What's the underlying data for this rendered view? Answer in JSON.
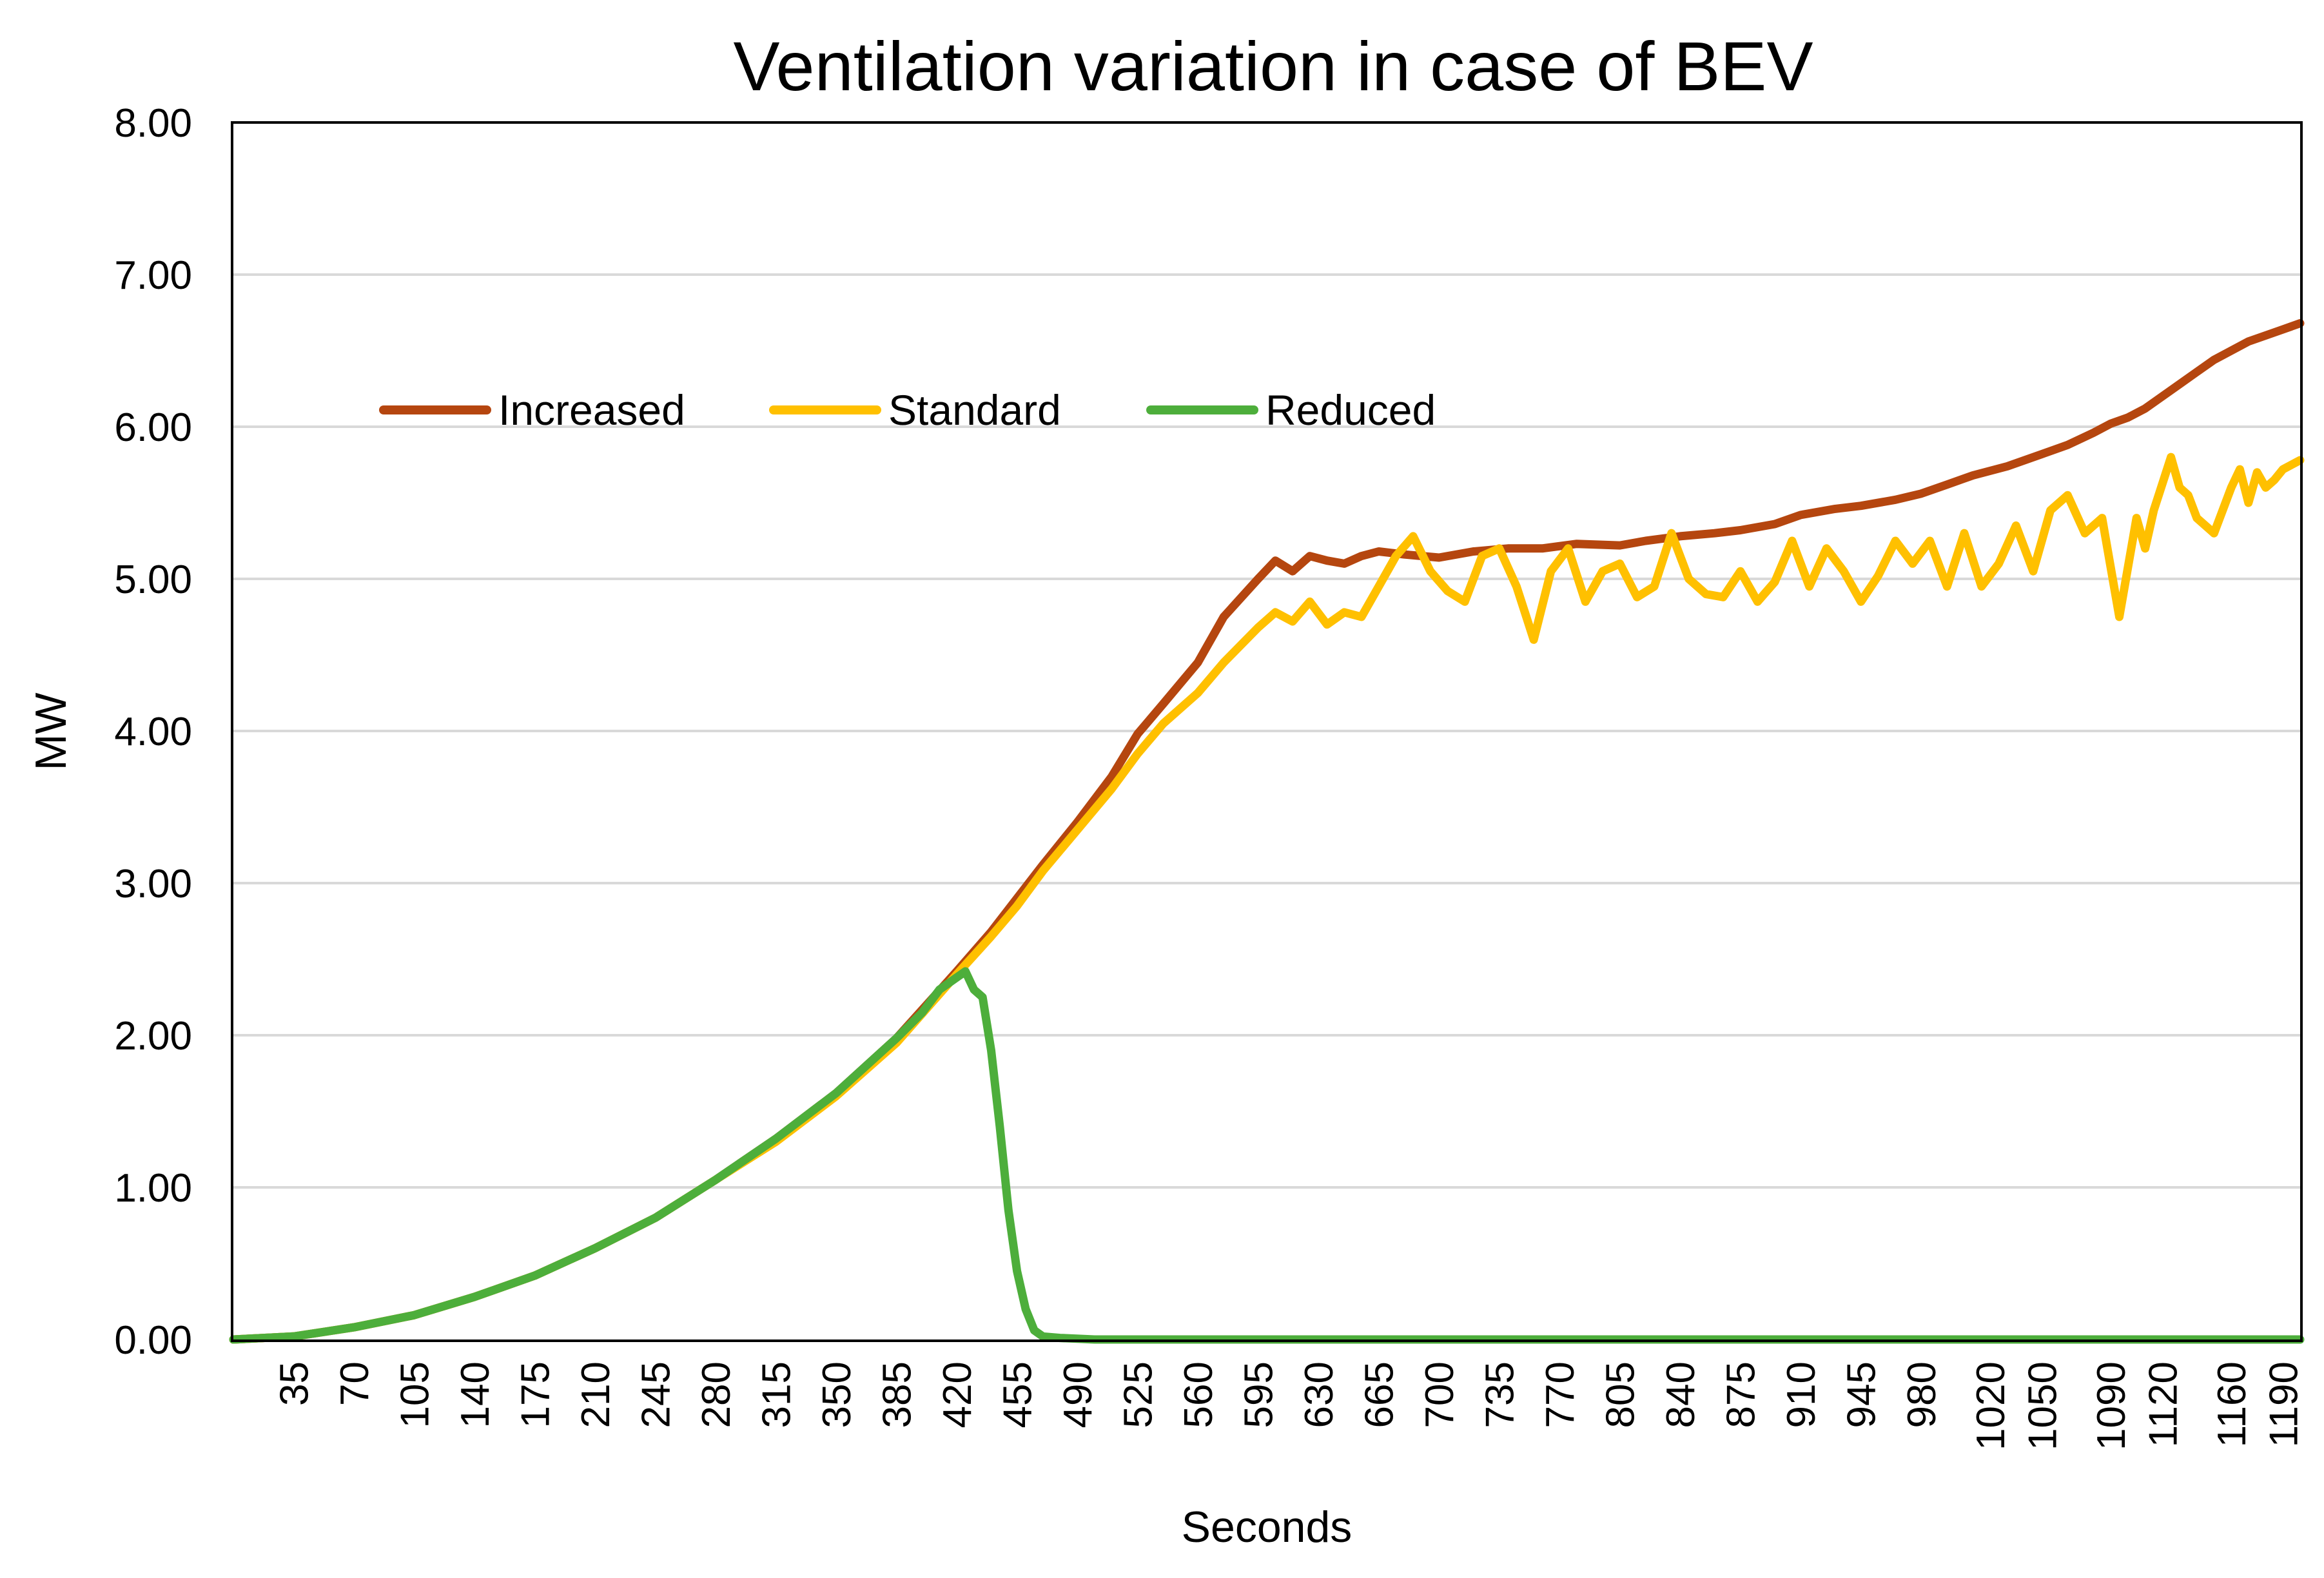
{
  "chart_data": {
    "type": "line",
    "title": "Ventilation variation in case of BEV",
    "xlabel": "Seconds",
    "ylabel": "MW",
    "xlim": [
      0,
      1200
    ],
    "ylim": [
      0,
      8
    ],
    "y_ticks": [
      "0.00",
      "1.00",
      "2.00",
      "3.00",
      "4.00",
      "5.00",
      "6.00",
      "7.00",
      "8.00"
    ],
    "x_ticks": [
      35,
      70,
      105,
      140,
      175,
      210,
      245,
      280,
      315,
      350,
      385,
      420,
      455,
      490,
      525,
      560,
      595,
      630,
      665,
      700,
      735,
      770,
      805,
      840,
      875,
      910,
      945,
      980,
      1020,
      1050,
      1090,
      1120,
      1160,
      1190
    ],
    "grid": "horizontal",
    "legend_position": "top-left inside",
    "series": [
      {
        "name": "Increased",
        "color": "#B5460F",
        "x": [
          0,
          35,
          70,
          105,
          140,
          175,
          210,
          245,
          280,
          315,
          350,
          385,
          420,
          440,
          455,
          470,
          490,
          510,
          525,
          540,
          560,
          575,
          595,
          605,
          615,
          625,
          635,
          645,
          655,
          665,
          680,
          700,
          720,
          740,
          760,
          780,
          805,
          820,
          840,
          860,
          875,
          895,
          910,
          930,
          945,
          965,
          980,
          995,
          1010,
          1030,
          1050,
          1065,
          1080,
          1090,
          1100,
          1110,
          1120,
          1130,
          1140,
          1150,
          1160,
          1170,
          1180,
          1190,
          1200
        ],
        "y": [
          0.0,
          0.02,
          0.08,
          0.16,
          0.28,
          0.42,
          0.6,
          0.8,
          1.05,
          1.32,
          1.62,
          1.98,
          2.42,
          2.68,
          2.9,
          3.12,
          3.4,
          3.7,
          3.98,
          4.18,
          4.45,
          4.75,
          5.0,
          5.12,
          5.05,
          5.15,
          5.12,
          5.1,
          5.15,
          5.18,
          5.16,
          5.14,
          5.18,
          5.2,
          5.2,
          5.23,
          5.22,
          5.25,
          5.28,
          5.3,
          5.32,
          5.36,
          5.42,
          5.46,
          5.48,
          5.52,
          5.56,
          5.62,
          5.68,
          5.74,
          5.82,
          5.88,
          5.96,
          6.02,
          6.06,
          6.12,
          6.2,
          6.28,
          6.36,
          6.44,
          6.5,
          6.56,
          6.6,
          6.64,
          6.68
        ]
      },
      {
        "name": "Standard",
        "color": "#FFC000",
        "x": [
          0,
          35,
          70,
          105,
          140,
          175,
          210,
          245,
          280,
          315,
          350,
          385,
          420,
          440,
          455,
          470,
          490,
          510,
          525,
          540,
          560,
          575,
          595,
          605,
          615,
          625,
          635,
          645,
          655,
          665,
          675,
          685,
          695,
          705,
          715,
          725,
          735,
          745,
          755,
          765,
          775,
          785,
          795,
          805,
          815,
          825,
          835,
          845,
          855,
          865,
          875,
          885,
          895,
          905,
          915,
          925,
          935,
          945,
          955,
          965,
          975,
          985,
          995,
          1005,
          1015,
          1025,
          1035,
          1045,
          1055,
          1065,
          1075,
          1085,
          1095,
          1105,
          1110,
          1115,
          1125,
          1130,
          1135,
          1140,
          1150,
          1160,
          1165,
          1170,
          1175,
          1180,
          1185,
          1190,
          1200
        ],
        "y": [
          0.0,
          0.02,
          0.08,
          0.16,
          0.28,
          0.42,
          0.6,
          0.8,
          1.05,
          1.3,
          1.6,
          1.95,
          2.4,
          2.65,
          2.85,
          3.08,
          3.35,
          3.62,
          3.85,
          4.05,
          4.25,
          4.45,
          4.68,
          4.78,
          4.72,
          4.85,
          4.7,
          4.78,
          4.75,
          4.95,
          5.15,
          5.28,
          5.05,
          4.92,
          4.85,
          5.15,
          5.2,
          4.95,
          4.6,
          5.05,
          5.2,
          4.85,
          5.05,
          5.1,
          4.88,
          4.95,
          5.3,
          5.0,
          4.9,
          4.88,
          5.05,
          4.85,
          4.98,
          5.25,
          4.95,
          5.2,
          5.05,
          4.85,
          5.02,
          5.25,
          5.1,
          5.25,
          4.95,
          5.3,
          4.95,
          5.1,
          5.35,
          5.05,
          5.45,
          5.55,
          5.3,
          5.4,
          4.75,
          5.4,
          5.2,
          5.45,
          5.8,
          5.6,
          5.55,
          5.4,
          5.3,
          5.6,
          5.72,
          5.5,
          5.7,
          5.6,
          5.65,
          5.72,
          5.78
        ]
      },
      {
        "name": "Reduced",
        "color": "#4DAE3B",
        "x": [
          0,
          35,
          70,
          105,
          140,
          175,
          210,
          245,
          280,
          315,
          350,
          385,
          400,
          410,
          420,
          425,
          430,
          435,
          440,
          445,
          450,
          455,
          460,
          465,
          470,
          480,
          500,
          1200
        ],
        "y": [
          0.0,
          0.02,
          0.08,
          0.16,
          0.28,
          0.42,
          0.6,
          0.8,
          1.05,
          1.32,
          1.62,
          1.98,
          2.15,
          2.3,
          2.38,
          2.42,
          2.3,
          2.25,
          1.9,
          1.4,
          0.85,
          0.45,
          0.2,
          0.06,
          0.02,
          0.01,
          0.0,
          0.0
        ]
      }
    ]
  }
}
